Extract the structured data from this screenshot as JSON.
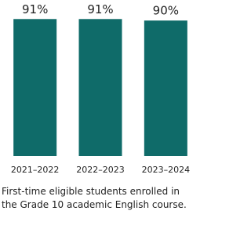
{
  "chart_data": {
    "type": "bar",
    "categories": [
      "2021–2022",
      "2022–2023",
      "2023–2024"
    ],
    "values": [
      91,
      91,
      90
    ],
    "value_labels": [
      "91%",
      "91%",
      "90%"
    ],
    "color": "#0f6b69",
    "caption": "First-time eligible students enrolled in the Grade 10 academic English course."
  }
}
